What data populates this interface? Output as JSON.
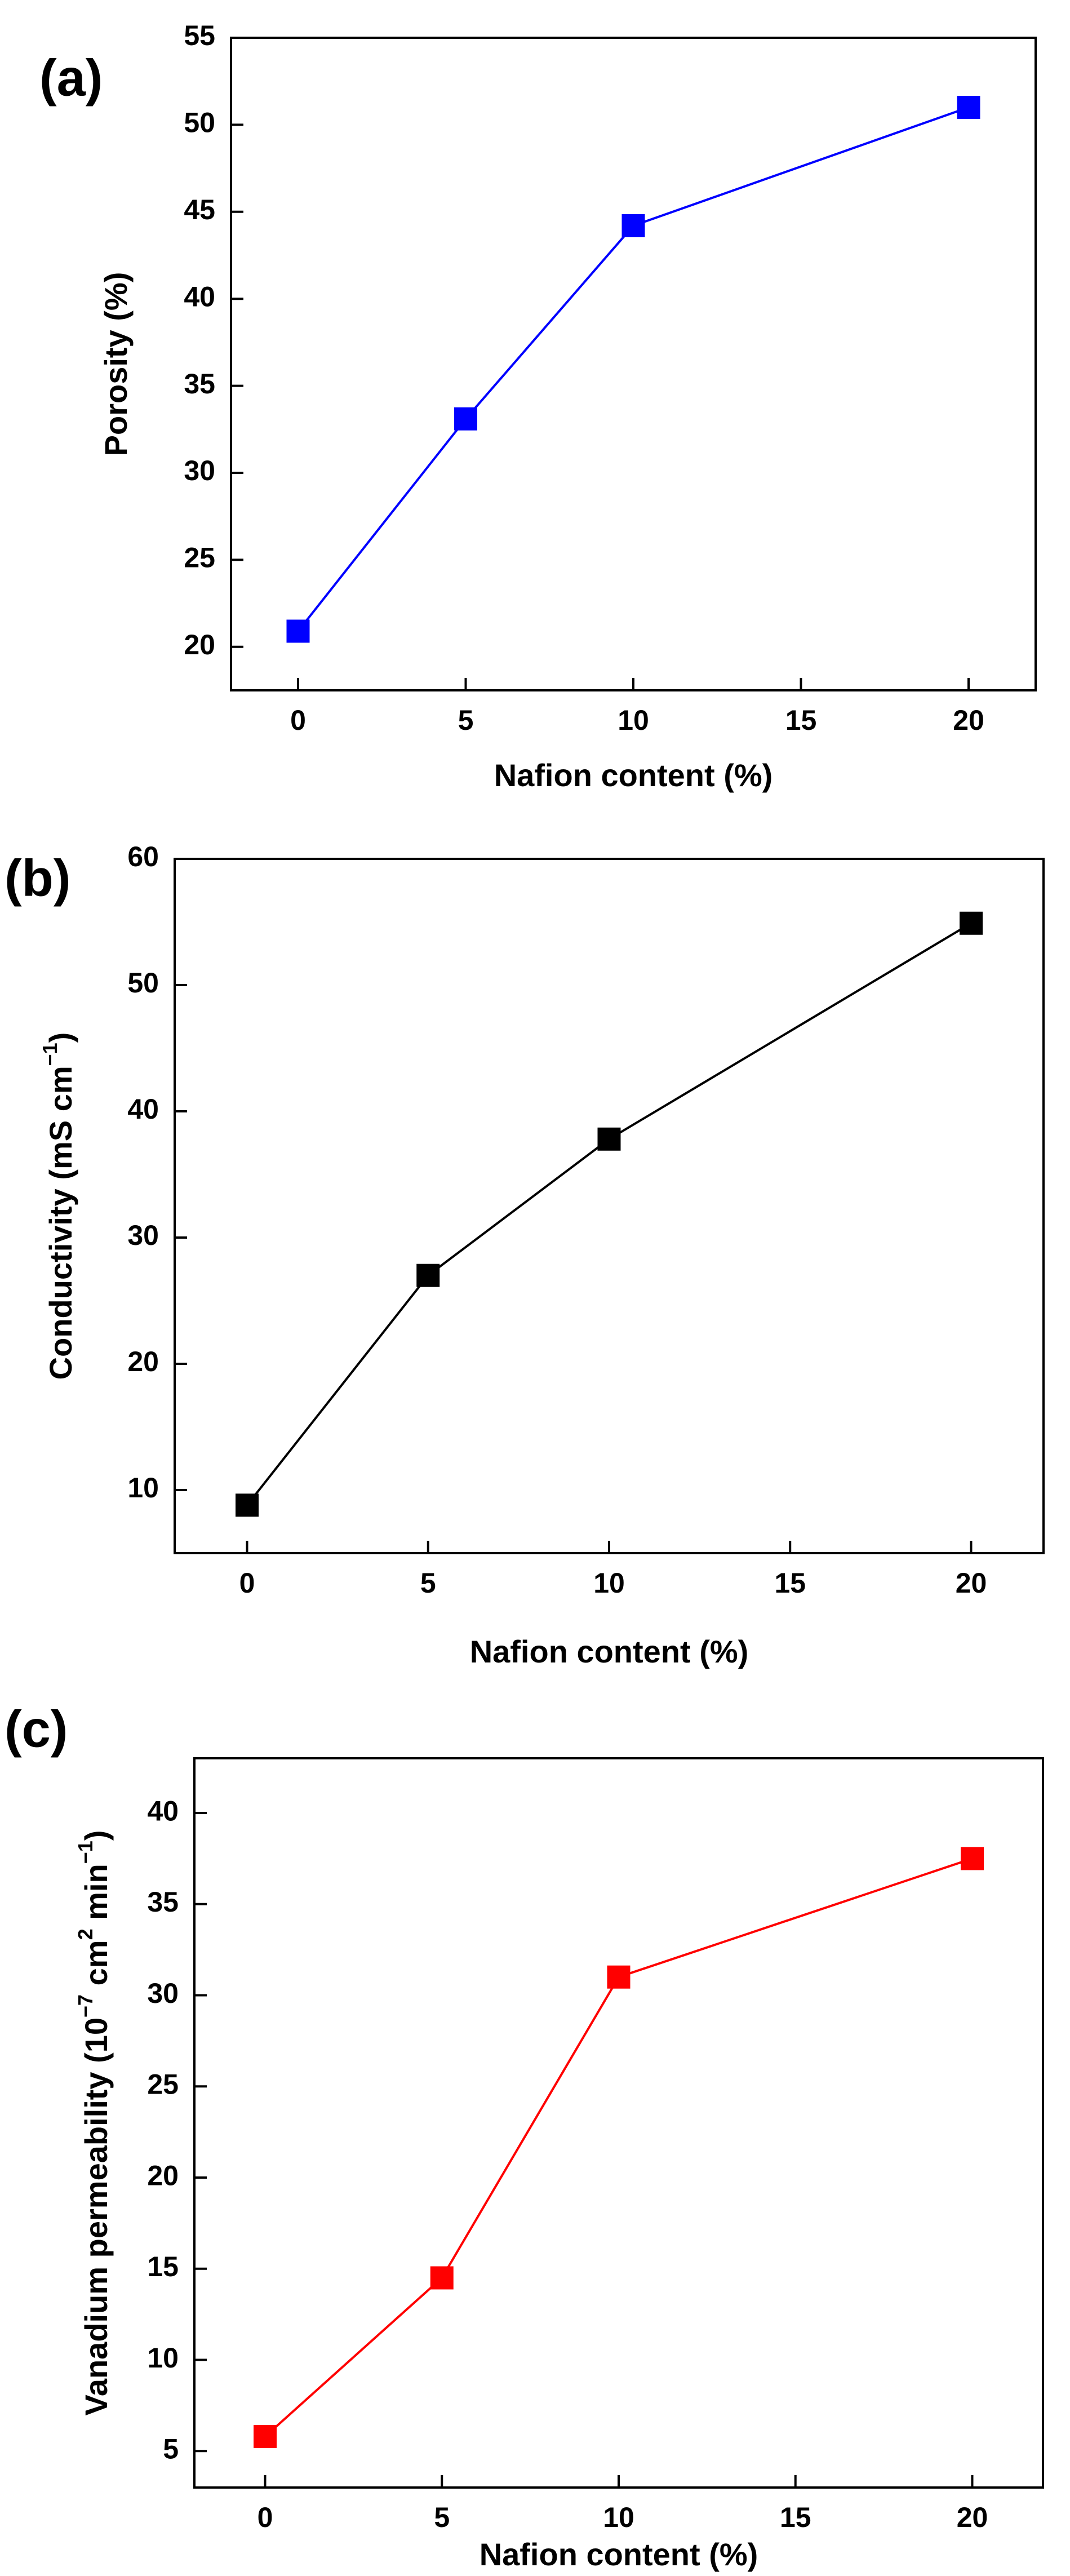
{
  "chart_data": [
    {
      "panel_label": "(a)",
      "type": "line",
      "marker": "square",
      "color": "#0000ff",
      "x": [
        0,
        5,
        10,
        20
      ],
      "series": [
        {
          "values": [
            20.9,
            33.1,
            44.2,
            51.0
          ]
        }
      ],
      "xlabel": "Nafion content (%)",
      "ylabel": "Porosity (%)",
      "xlim": [
        -2,
        22
      ],
      "ylim": [
        17.5,
        55
      ],
      "xticks": [
        0,
        5,
        10,
        15,
        20
      ],
      "yticks": [
        20,
        25,
        30,
        35,
        40,
        45,
        50,
        55
      ],
      "grid": false
    },
    {
      "panel_label": "(b)",
      "type": "line",
      "marker": "square",
      "color": "#000000",
      "x": [
        0,
        5,
        10,
        20
      ],
      "series": [
        {
          "values": [
            8.8,
            27.0,
            37.8,
            54.9
          ]
        }
      ],
      "xlabel": "Nafion content (%)",
      "ylabel": {
        "text": "Conductivity (mS cm",
        "sup": "−1",
        "after": ")"
      },
      "xlim": [
        -2,
        22
      ],
      "ylim": [
        5,
        60
      ],
      "xticks": [
        0,
        5,
        10,
        15,
        20
      ],
      "yticks": [
        10,
        20,
        30,
        40,
        50,
        60
      ],
      "grid": false
    },
    {
      "panel_label": "(c)",
      "type": "line",
      "marker": "square",
      "color": "#ff0000",
      "x": [
        0,
        5,
        10,
        20
      ],
      "series": [
        {
          "values": [
            5.8,
            14.5,
            31.0,
            37.5
          ]
        }
      ],
      "xlabel": "Nafion content (%)",
      "ylabel": {
        "text": "Vanadium permeability (10",
        "sup": "−7",
        "mid": " cm",
        "sup2": "2",
        "mid2": " min",
        "sup3": "−1",
        "after": ")"
      },
      "xlim": [
        -2,
        22
      ],
      "ylim": [
        3,
        43
      ],
      "xticks": [
        0,
        5,
        10,
        15,
        20
      ],
      "yticks": [
        5,
        10,
        15,
        20,
        25,
        30,
        35,
        40
      ],
      "grid": false
    }
  ]
}
